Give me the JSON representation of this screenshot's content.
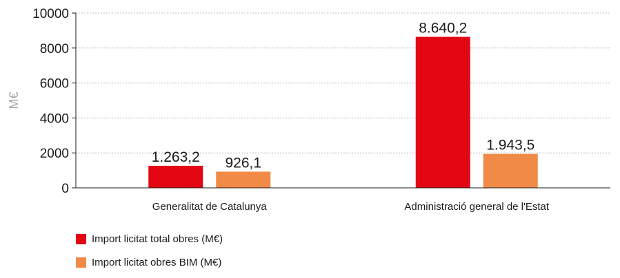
{
  "chart_data": {
    "type": "bar",
    "title": "",
    "xlabel": "",
    "ylabel": "M€",
    "ylim": [
      0,
      10000
    ],
    "yticks": [
      "0",
      "2000",
      "4000",
      "6000",
      "8000",
      "10000"
    ],
    "grid": true,
    "legend_position": "bottom-left",
    "categories": [
      "Generalitat de Catalunya",
      "Administració general de l'Estat"
    ],
    "series": [
      {
        "name": "Import licitat total obres (M€)",
        "color": "#e30613",
        "values": [
          1263.2,
          8640.2
        ],
        "labels": [
          "1.263,2",
          "8.640,2"
        ]
      },
      {
        "name": "Import licitat obres BIM (M€)",
        "color": "#f08a46",
        "values": [
          926.1,
          1943.5
        ],
        "labels": [
          "926,1",
          "1.943,5"
        ]
      }
    ]
  }
}
